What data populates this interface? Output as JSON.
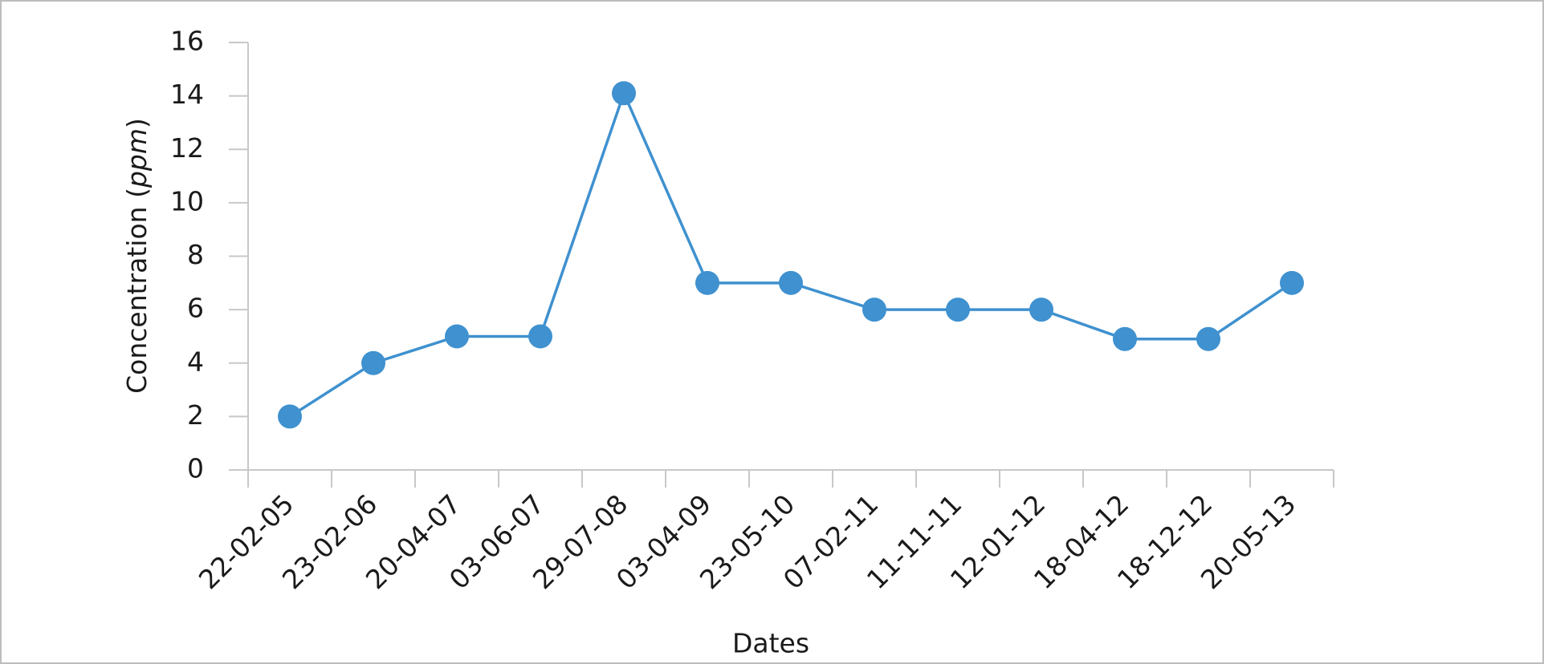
{
  "chart_data": {
    "type": "line",
    "ylabel": [
      "Concentration (",
      "ppm",
      ")"
    ],
    "xlabel": "Dates",
    "categories": [
      "22-02-05",
      "23-02-06",
      "20-04-07",
      "03-06-07",
      "29-07-08",
      "03-04-09",
      "23-05-10",
      "07-02-11",
      "11-11-11",
      "12-01-12",
      "18-04-12",
      "18-12-12",
      "20-05-13"
    ],
    "series": [
      {
        "name": "Concentration",
        "color": "#3f91cf",
        "values": [
          2,
          4,
          5,
          5,
          14.1,
          7,
          7,
          6,
          6,
          6,
          4.9,
          4.9,
          7
        ]
      }
    ],
    "ylim": [
      0,
      16
    ],
    "yticks": [
      0,
      2,
      4,
      6,
      8,
      10,
      12,
      14,
      16
    ],
    "grid": false
  }
}
